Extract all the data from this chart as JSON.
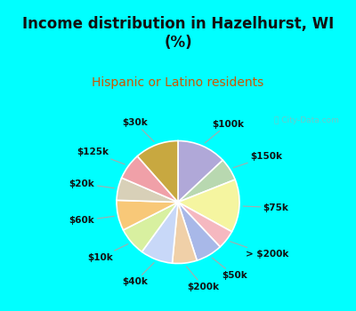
{
  "title": "Income distribution in Hazelhurst, WI\n(%)",
  "subtitle": "Hispanic or Latino residents",
  "bg_color": "#00FFFF",
  "panel_color": "#d8f0e8",
  "watermark": "ⓘ City-Data.com",
  "slices": [
    {
      "label": "$100k",
      "value": 13.0,
      "color": "#b0a8d8"
    },
    {
      "label": "$150k",
      "value": 6.0,
      "color": "#b8d8b0"
    },
    {
      "label": "$75k",
      "value": 14.0,
      "color": "#f5f5a0"
    },
    {
      "label": "> $200k",
      "value": 5.0,
      "color": "#f5b8c0"
    },
    {
      "label": "$50k",
      "value": 7.0,
      "color": "#a8b8e8"
    },
    {
      "label": "$200k",
      "value": 6.5,
      "color": "#f0d0a8"
    },
    {
      "label": "$40k",
      "value": 8.5,
      "color": "#c8d8f8"
    },
    {
      "label": "$10k",
      "value": 7.5,
      "color": "#d8f0a0"
    },
    {
      "label": "$60k",
      "value": 8.0,
      "color": "#f8c878"
    },
    {
      "label": "$20k",
      "value": 6.0,
      "color": "#d8d0b8"
    },
    {
      "label": "$125k",
      "value": 7.0,
      "color": "#f0a0a8"
    },
    {
      "label": "$30k",
      "value": 11.5,
      "color": "#c8a840"
    }
  ],
  "label_fontsize": 7.5,
  "title_fontsize": 12,
  "subtitle_fontsize": 10,
  "title_color": "#111111",
  "subtitle_color": "#cc5500",
  "startangle": 90
}
